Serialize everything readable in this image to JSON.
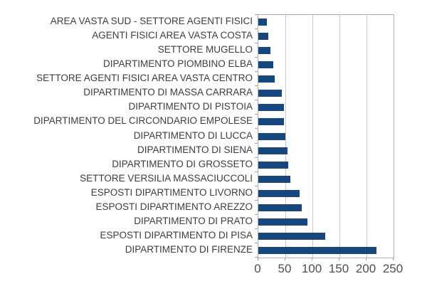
{
  "chart": {
    "colors": {
      "bar": "#16477E",
      "grid": "#c9c9c9",
      "plot_border": "#b0b0b0",
      "tick_mark": "#9e9e9e",
      "category_text": "#3d3d3d",
      "axis_text": "#4f4f4f",
      "background": "#ffffff"
    }
  },
  "chart_data": {
    "type": "bar",
    "orientation": "horizontal",
    "title": "",
    "xlabel": "",
    "ylabel": "",
    "grid": true,
    "legend": false,
    "xlim": [
      0,
      250
    ],
    "xticks": [
      0,
      50,
      100,
      150,
      200,
      250
    ],
    "categories": [
      "AREA VASTA SUD - SETTORE AGENTI FISICI",
      "AGENTI FISICI AREA VASTA COSTA",
      "SETTORE MUGELLO",
      "DIPARTIMENTO PIOMBINO ELBA",
      "SETTORE AGENTI FISICI AREA VASTA CENTRO",
      "DIPARTIMENTO DI MASSA CARRARA",
      "DIPARTIMENTO DI PISTOIA",
      "DIPARTIMENTO DEL CIRCONDARIO EMPOLESE",
      "DIPARTIMENTO DI LUCCA",
      "DIPARTIMENTO DI SIENA",
      "DIPARTIMENTO DI GROSSETO",
      "SETTORE VERSILIA MASSACIUCCOLI",
      "ESPOSTI DIPARTIMENTO LIVORNO",
      "ESPOSTI DIPARTIMENTO AREZZO",
      "DIPARTIMENTO DI PRATO",
      "ESPOSTI DIPARTIMENTO DI PISA",
      "DIPARTIMENTO DI FIRENZE"
    ],
    "values": [
      16,
      19,
      22,
      28,
      30,
      43,
      47,
      48,
      50,
      54,
      55,
      59,
      76,
      80,
      91,
      124,
      218
    ]
  }
}
